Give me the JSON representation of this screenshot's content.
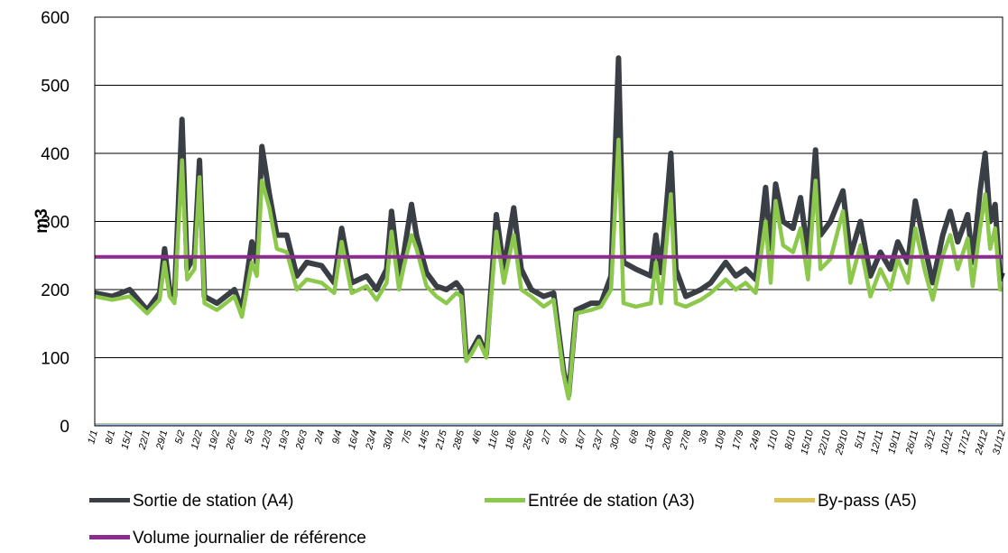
{
  "chart_data": {
    "type": "line",
    "ylabel": "m3",
    "ylim": [
      0,
      600
    ],
    "yticks": [
      0,
      100,
      200,
      300,
      400,
      500,
      600
    ],
    "grid": true,
    "legend_position": "bottom",
    "x_tick_labels": [
      "1/1",
      "8/1",
      "15/1",
      "22/1",
      "29/1",
      "5/2",
      "12/2",
      "19/2",
      "26/2",
      "5/3",
      "12/3",
      "19/3",
      "26/3",
      "2/4",
      "9/4",
      "16/4",
      "23/4",
      "30/4",
      "7/5",
      "14/5",
      "21/5",
      "28/5",
      "4/6",
      "11/6",
      "18/6",
      "25/6",
      "2/7",
      "9/7",
      "16/7",
      "23/7",
      "30/7",
      "6/8",
      "13/8",
      "20/8",
      "27/8",
      "3/9",
      "10/9",
      "17/9",
      "24/9",
      "1/10",
      "8/10",
      "15/10",
      "22/10",
      "29/10",
      "5/11",
      "12/11",
      "19/11",
      "26/11",
      "3/12",
      "10/12",
      "17/12",
      "24/12",
      "31/12"
    ],
    "x_day_of_year": [
      1,
      8,
      15,
      22,
      29,
      36,
      43,
      50,
      57,
      64,
      71,
      78,
      85,
      92,
      99,
      106,
      113,
      120,
      127,
      134,
      141,
      148,
      155,
      162,
      169,
      176,
      183,
      190,
      197,
      204,
      211,
      218,
      225,
      232,
      239,
      246,
      253,
      260,
      267,
      274,
      281,
      288,
      295,
      302,
      309,
      316,
      323,
      330,
      337,
      344,
      351,
      358,
      365
    ],
    "series": [
      {
        "name": "Sortie de station (A4)",
        "color": "#3a3f46",
        "values": [
          [
            1,
            195
          ],
          [
            8,
            190
          ],
          [
            15,
            200
          ],
          [
            22,
            170
          ],
          [
            27,
            195
          ],
          [
            29,
            260
          ],
          [
            31,
            200
          ],
          [
            33,
            190
          ],
          [
            36,
            450
          ],
          [
            38,
            230
          ],
          [
            41,
            250
          ],
          [
            43,
            390
          ],
          [
            45,
            190
          ],
          [
            50,
            180
          ],
          [
            57,
            200
          ],
          [
            60,
            170
          ],
          [
            64,
            270
          ],
          [
            66,
            240
          ],
          [
            68,
            410
          ],
          [
            71,
            340
          ],
          [
            74,
            280
          ],
          [
            78,
            280
          ],
          [
            82,
            220
          ],
          [
            86,
            240
          ],
          [
            92,
            235
          ],
          [
            97,
            210
          ],
          [
            100,
            290
          ],
          [
            104,
            210
          ],
          [
            110,
            220
          ],
          [
            114,
            200
          ],
          [
            118,
            230
          ],
          [
            120,
            315
          ],
          [
            123,
            220
          ],
          [
            125,
            255
          ],
          [
            128,
            325
          ],
          [
            130,
            280
          ],
          [
            134,
            225
          ],
          [
            138,
            205
          ],
          [
            142,
            200
          ],
          [
            146,
            210
          ],
          [
            148,
            200
          ],
          [
            150,
            100
          ],
          [
            152,
            110
          ],
          [
            155,
            130
          ],
          [
            158,
            105
          ],
          [
            162,
            310
          ],
          [
            165,
            230
          ],
          [
            169,
            320
          ],
          [
            172,
            230
          ],
          [
            176,
            200
          ],
          [
            181,
            190
          ],
          [
            185,
            195
          ],
          [
            189,
            80
          ],
          [
            191,
            45
          ],
          [
            194,
            170
          ],
          [
            200,
            180
          ],
          [
            204,
            180
          ],
          [
            208,
            220
          ],
          [
            211,
            540
          ],
          [
            213,
            240
          ],
          [
            218,
            230
          ],
          [
            224,
            220
          ],
          [
            226,
            280
          ],
          [
            228,
            225
          ],
          [
            232,
            400
          ],
          [
            234,
            230
          ],
          [
            238,
            190
          ],
          [
            244,
            200
          ],
          [
            248,
            210
          ],
          [
            254,
            240
          ],
          [
            258,
            220
          ],
          [
            262,
            230
          ],
          [
            266,
            215
          ],
          [
            270,
            350
          ],
          [
            272,
            260
          ],
          [
            274,
            355
          ],
          [
            277,
            300
          ],
          [
            281,
            290
          ],
          [
            284,
            335
          ],
          [
            287,
            250
          ],
          [
            290,
            405
          ],
          [
            292,
            280
          ],
          [
            296,
            300
          ],
          [
            301,
            345
          ],
          [
            304,
            250
          ],
          [
            308,
            300
          ],
          [
            312,
            220
          ],
          [
            316,
            255
          ],
          [
            320,
            230
          ],
          [
            323,
            270
          ],
          [
            327,
            240
          ],
          [
            330,
            330
          ],
          [
            334,
            260
          ],
          [
            337,
            210
          ],
          [
            341,
            280
          ],
          [
            344,
            315
          ],
          [
            347,
            270
          ],
          [
            351,
            310
          ],
          [
            353,
            240
          ],
          [
            356,
            345
          ],
          [
            358,
            400
          ],
          [
            360,
            300
          ],
          [
            362,
            325
          ],
          [
            364,
            215
          ],
          [
            365,
            225
          ]
        ]
      },
      {
        "name": "Entrée de station (A3)",
        "color": "#8cc84b",
        "values": [
          [
            1,
            190
          ],
          [
            8,
            185
          ],
          [
            15,
            190
          ],
          [
            22,
            165
          ],
          [
            27,
            185
          ],
          [
            29,
            240
          ],
          [
            31,
            190
          ],
          [
            33,
            180
          ],
          [
            36,
            390
          ],
          [
            38,
            215
          ],
          [
            41,
            230
          ],
          [
            43,
            365
          ],
          [
            45,
            180
          ],
          [
            50,
            170
          ],
          [
            57,
            190
          ],
          [
            60,
            160
          ],
          [
            64,
            240
          ],
          [
            66,
            220
          ],
          [
            68,
            360
          ],
          [
            71,
            320
          ],
          [
            74,
            260
          ],
          [
            78,
            255
          ],
          [
            82,
            200
          ],
          [
            86,
            215
          ],
          [
            92,
            210
          ],
          [
            97,
            195
          ],
          [
            100,
            270
          ],
          [
            104,
            195
          ],
          [
            110,
            205
          ],
          [
            114,
            185
          ],
          [
            118,
            210
          ],
          [
            120,
            285
          ],
          [
            123,
            200
          ],
          [
            125,
            235
          ],
          [
            128,
            280
          ],
          [
            130,
            260
          ],
          [
            134,
            205
          ],
          [
            138,
            190
          ],
          [
            142,
            180
          ],
          [
            146,
            195
          ],
          [
            148,
            190
          ],
          [
            150,
            95
          ],
          [
            152,
            105
          ],
          [
            155,
            125
          ],
          [
            158,
            100
          ],
          [
            162,
            285
          ],
          [
            165,
            210
          ],
          [
            169,
            280
          ],
          [
            172,
            200
          ],
          [
            176,
            190
          ],
          [
            181,
            175
          ],
          [
            185,
            185
          ],
          [
            189,
            75
          ],
          [
            191,
            40
          ],
          [
            194,
            165
          ],
          [
            200,
            170
          ],
          [
            204,
            175
          ],
          [
            208,
            200
          ],
          [
            211,
            420
          ],
          [
            213,
            180
          ],
          [
            218,
            175
          ],
          [
            224,
            180
          ],
          [
            226,
            240
          ],
          [
            228,
            180
          ],
          [
            232,
            340
          ],
          [
            234,
            180
          ],
          [
            238,
            175
          ],
          [
            244,
            185
          ],
          [
            248,
            195
          ],
          [
            254,
            215
          ],
          [
            258,
            200
          ],
          [
            262,
            210
          ],
          [
            266,
            195
          ],
          [
            270,
            300
          ],
          [
            272,
            210
          ],
          [
            274,
            330
          ],
          [
            277,
            265
          ],
          [
            281,
            255
          ],
          [
            284,
            290
          ],
          [
            287,
            215
          ],
          [
            290,
            360
          ],
          [
            292,
            230
          ],
          [
            296,
            245
          ],
          [
            301,
            315
          ],
          [
            304,
            210
          ],
          [
            308,
            265
          ],
          [
            312,
            190
          ],
          [
            316,
            230
          ],
          [
            320,
            200
          ],
          [
            323,
            245
          ],
          [
            327,
            210
          ],
          [
            330,
            290
          ],
          [
            334,
            225
          ],
          [
            337,
            185
          ],
          [
            341,
            250
          ],
          [
            344,
            280
          ],
          [
            347,
            230
          ],
          [
            351,
            275
          ],
          [
            353,
            205
          ],
          [
            356,
            290
          ],
          [
            358,
            340
          ],
          [
            360,
            260
          ],
          [
            362,
            290
          ],
          [
            364,
            200
          ],
          [
            365,
            200
          ]
        ]
      },
      {
        "name": "By-pass (A5)",
        "color": "#d9c45a",
        "values": [
          [
            1,
            2
          ],
          [
            365,
            2
          ]
        ]
      },
      {
        "name": "Volume journalier de référence",
        "color": "#8b2c8f",
        "values": [
          [
            1,
            248
          ],
          [
            365,
            248
          ]
        ]
      }
    ]
  }
}
